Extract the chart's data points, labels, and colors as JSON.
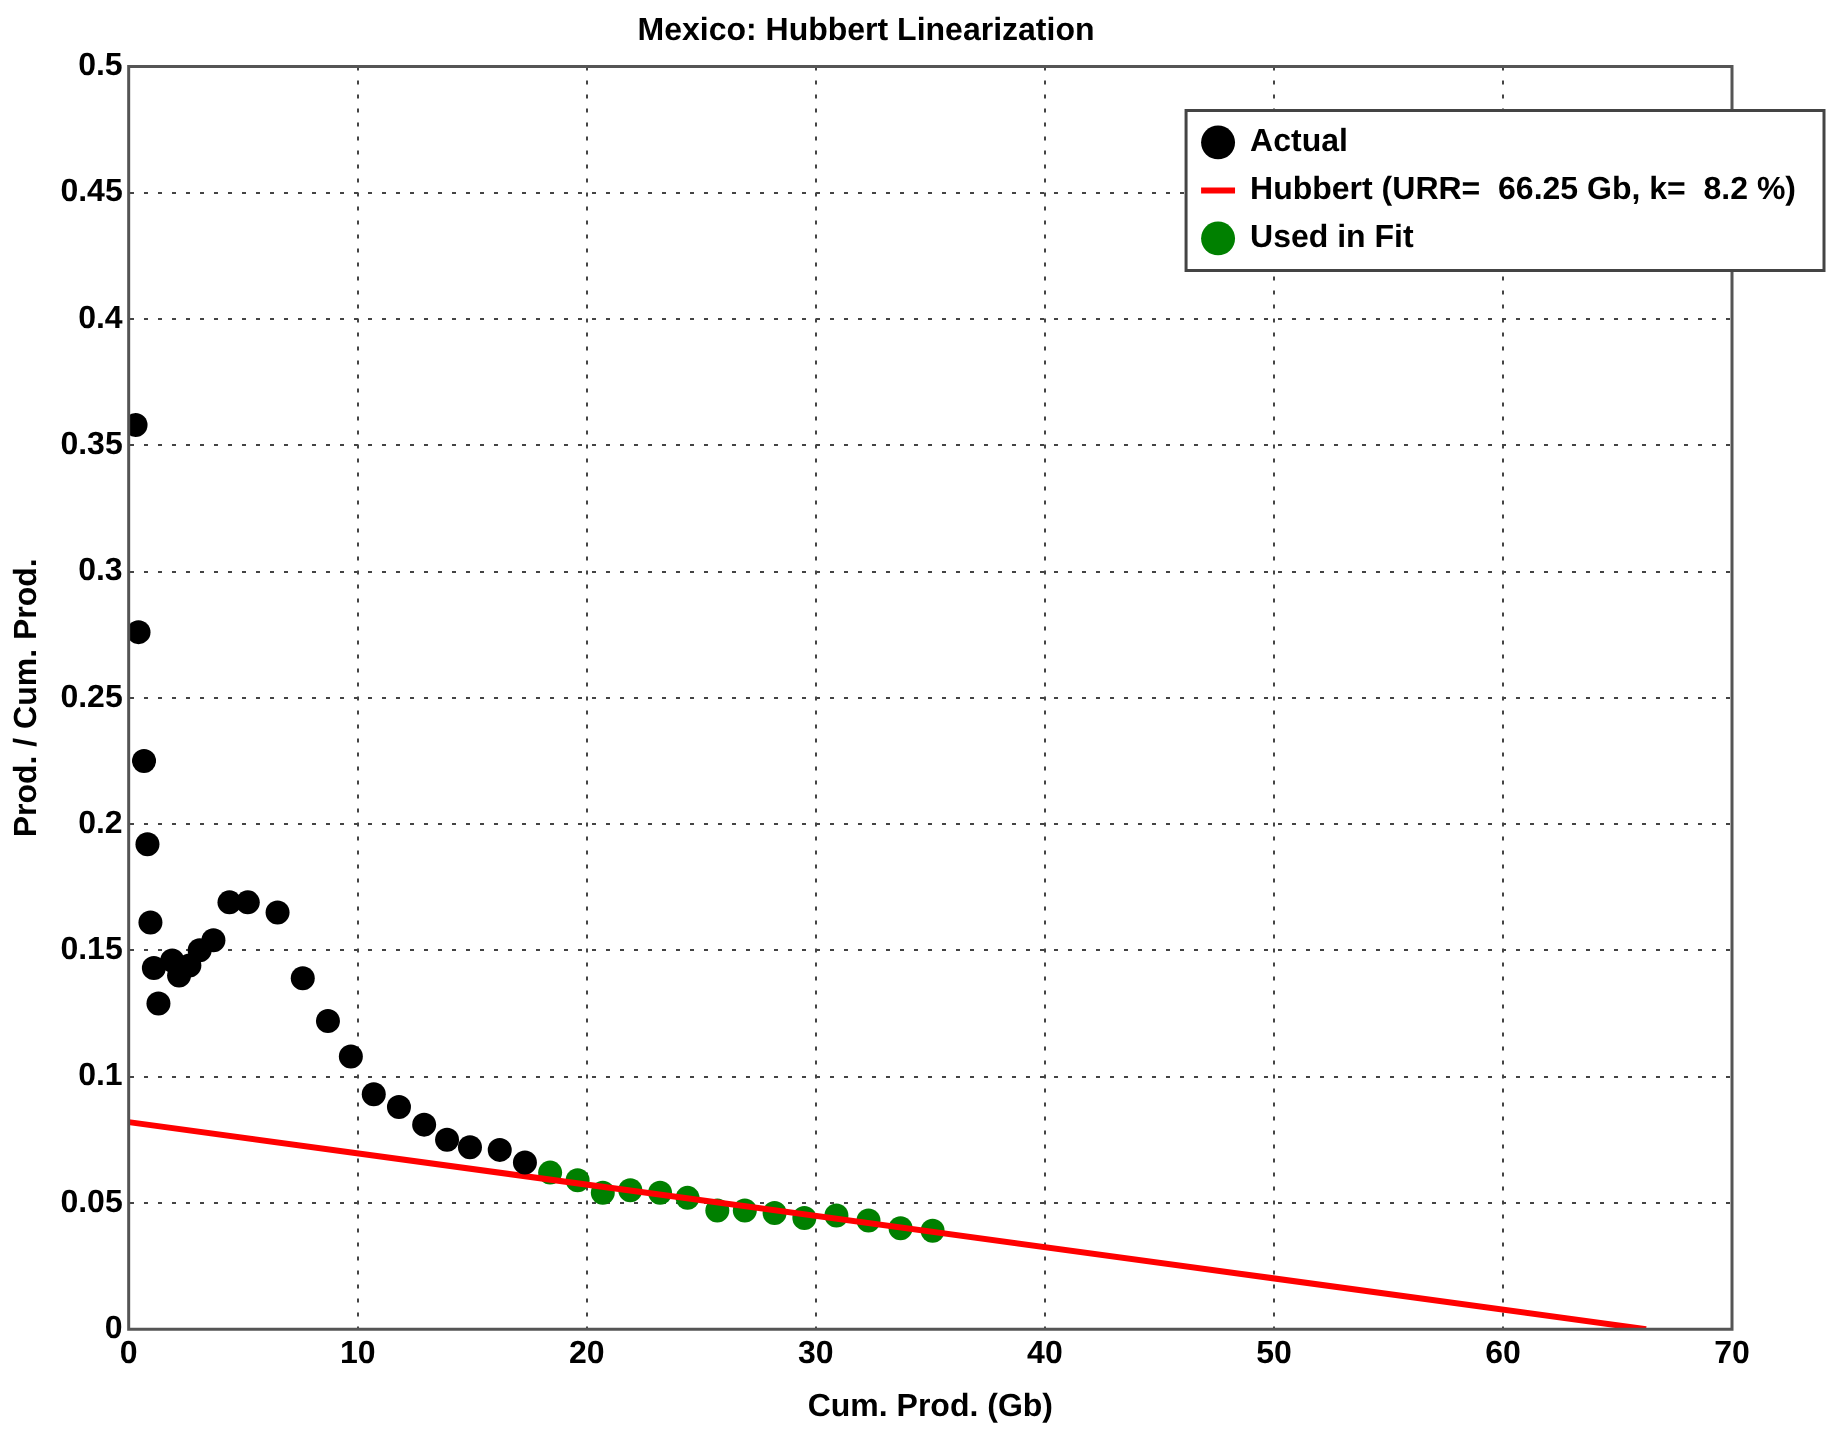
{
  "chart_data": {
    "type": "scatter",
    "title": "Mexico: Hubbert Linearization",
    "xlabel": "Cum. Prod. (Gb)",
    "ylabel": "Prod. / Cum. Prod.",
    "xlim": [
      0,
      70
    ],
    "xticks": [
      0,
      10,
      20,
      30,
      40,
      50,
      60,
      70
    ],
    "ylim": [
      0,
      0.5
    ],
    "yticks": [
      0,
      0.05,
      0.1,
      0.15,
      0.2,
      0.25,
      0.3,
      0.35,
      0.4,
      0.45,
      0.5
    ],
    "grid": true,
    "legend": "top right",
    "marker": "circle",
    "series": [
      {
        "name": "Actual",
        "type": "scatter",
        "color": "#000000",
        "x": [
          0.3,
          0.43,
          0.67,
          0.82,
          0.95,
          1.1,
          1.3,
          1.9,
          2.2,
          2.65,
          3.1,
          3.7,
          4.4,
          5.2,
          6.5,
          7.6,
          8.7,
          9.7,
          10.7,
          11.8,
          12.9,
          13.9,
          14.9,
          16.2,
          17.3
        ],
        "values": [
          0.358,
          0.276,
          0.225,
          0.192,
          0.161,
          0.143,
          0.129,
          0.146,
          0.14,
          0.144,
          0.15,
          0.154,
          0.169,
          0.169,
          0.165,
          0.139,
          0.122,
          0.108,
          0.093,
          0.088,
          0.081,
          0.075,
          0.072,
          0.071,
          0.066
        ]
      },
      {
        "name": "Hubbert (URR=  66.25 Gb, k=  8.2 %)",
        "type": "line",
        "color": "#ff0000",
        "line_style": "solid",
        "marker": "none",
        "x": [
          0,
          66.25
        ],
        "values": [
          0.082,
          0
        ]
      },
      {
        "name": "Used in Fit",
        "type": "scatter",
        "color": "#008000",
        "x": [
          18.4,
          19.6,
          20.7,
          21.9,
          23.2,
          24.4,
          25.7,
          26.9,
          28.2,
          29.5,
          30.9,
          32.3,
          33.7,
          35.1
        ],
        "values": [
          0.062,
          0.059,
          0.054,
          0.055,
          0.054,
          0.052,
          0.047,
          0.047,
          0.046,
          0.044,
          0.045,
          0.043,
          0.04,
          0.039
        ]
      }
    ]
  }
}
